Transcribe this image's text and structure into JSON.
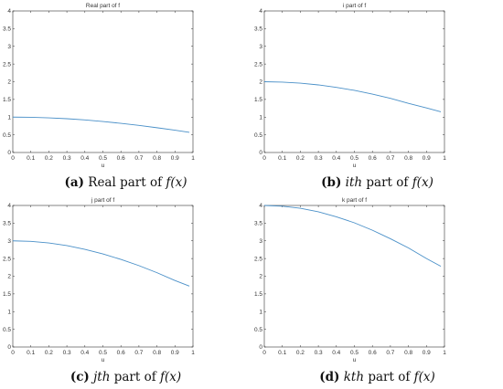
{
  "chart_data": [
    {
      "type": "line",
      "title": "Real part of f",
      "xlabel": "u",
      "ylabel": "",
      "xlim": [
        0,
        1
      ],
      "ylim": [
        0,
        4
      ],
      "xticks": [
        "0",
        "0.1",
        "0.2",
        "0.3",
        "0.4",
        "0.5",
        "0.6",
        "0.7",
        "0.8",
        "0.9",
        "1"
      ],
      "yticks": [
        "0",
        "0.5",
        "1",
        "1.5",
        "2",
        "2.5",
        "3",
        "3.5",
        "4"
      ],
      "grid": false,
      "line_color": "#4a90c8",
      "x": [
        0,
        0.1,
        0.2,
        0.3,
        0.4,
        0.5,
        0.6,
        0.7,
        0.8,
        0.9,
        0.98
      ],
      "y": [
        1.0,
        0.995,
        0.98,
        0.955,
        0.92,
        0.875,
        0.825,
        0.765,
        0.7,
        0.63,
        0.57
      ],
      "caption": {
        "label": "(a)",
        "text": "Real part of",
        "math": "f(x)"
      }
    },
    {
      "type": "line",
      "title": "i part of f",
      "xlabel": "u",
      "ylabel": "",
      "xlim": [
        0,
        1
      ],
      "ylim": [
        0,
        4
      ],
      "xticks": [
        "0",
        "0.1",
        "0.2",
        "0.3",
        "0.4",
        "0.5",
        "0.6",
        "0.7",
        "0.8",
        "0.9",
        "1"
      ],
      "yticks": [
        "0",
        "0.5",
        "1",
        "1.5",
        "2",
        "2.5",
        "3",
        "3.5",
        "4"
      ],
      "grid": false,
      "line_color": "#4a90c8",
      "x": [
        0,
        0.1,
        0.2,
        0.3,
        0.4,
        0.5,
        0.6,
        0.7,
        0.8,
        0.9,
        0.98
      ],
      "y": [
        2.0,
        1.99,
        1.96,
        1.91,
        1.84,
        1.755,
        1.65,
        1.53,
        1.39,
        1.26,
        1.15
      ],
      "caption": {
        "label": "(b)",
        "text": "part of",
        "prefix": "ith",
        "math": "f(x)"
      }
    },
    {
      "type": "line",
      "title": "j part of f",
      "xlabel": "u",
      "ylabel": "",
      "xlim": [
        0,
        1
      ],
      "ylim": [
        0,
        4
      ],
      "xticks": [
        "0",
        "0.1",
        "0.2",
        "0.3",
        "0.4",
        "0.5",
        "0.6",
        "0.7",
        "0.8",
        "0.9",
        "1"
      ],
      "yticks": [
        "0",
        "0.5",
        "1",
        "1.5",
        "2",
        "2.5",
        "3",
        "3.5",
        "4"
      ],
      "grid": false,
      "line_color": "#4a90c8",
      "x": [
        0,
        0.1,
        0.2,
        0.3,
        0.4,
        0.5,
        0.6,
        0.7,
        0.8,
        0.9,
        0.98
      ],
      "y": [
        3.0,
        2.985,
        2.94,
        2.865,
        2.76,
        2.63,
        2.475,
        2.3,
        2.1,
        1.88,
        1.72
      ],
      "caption": {
        "label": "(c)",
        "text": "part of",
        "prefix": "jth",
        "math": "f(x)"
      }
    },
    {
      "type": "line",
      "title": "k part of f",
      "xlabel": "u",
      "ylabel": "",
      "xlim": [
        0,
        1
      ],
      "ylim": [
        0,
        4
      ],
      "xticks": [
        "0",
        "0.1",
        "0.2",
        "0.3",
        "0.4",
        "0.5",
        "0.6",
        "0.7",
        "0.8",
        "0.9",
        "1"
      ],
      "yticks": [
        "0",
        "0.5",
        "1",
        "1.5",
        "2",
        "2.5",
        "3",
        "3.5",
        "4"
      ],
      "grid": false,
      "line_color": "#4a90c8",
      "x": [
        0,
        0.1,
        0.2,
        0.3,
        0.4,
        0.5,
        0.6,
        0.7,
        0.8,
        0.9,
        0.98
      ],
      "y": [
        4.0,
        3.98,
        3.92,
        3.82,
        3.68,
        3.51,
        3.3,
        3.06,
        2.8,
        2.5,
        2.28
      ],
      "caption": {
        "label": "(d)",
        "text": "part of",
        "prefix": "kth",
        "math": "f(x)"
      }
    }
  ]
}
